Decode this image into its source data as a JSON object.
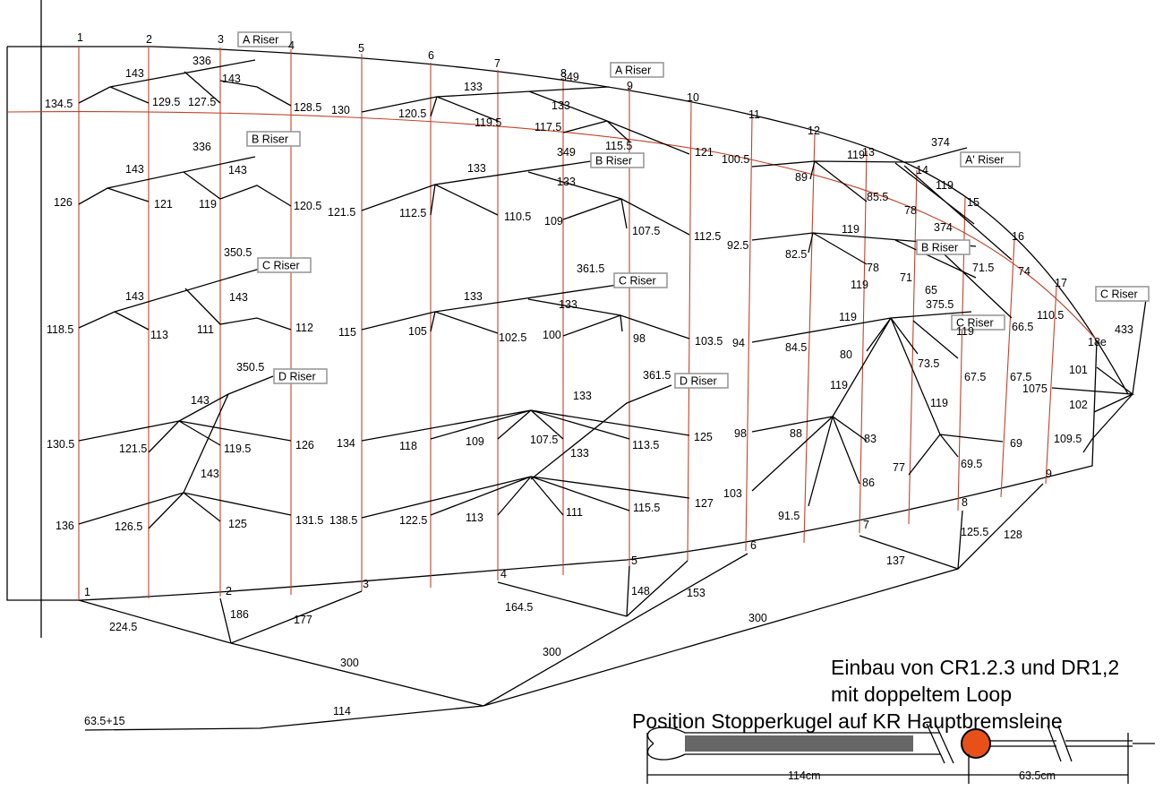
{
  "notes": {
    "line1": "Einbau von CR1.2.3 und DR1,2",
    "line2": "mit doppeltem Loop",
    "line3": "Position Stopperkugel auf KR Hauptbremsleine"
  },
  "colors": {
    "rib": "#c0432a",
    "line": "#000000",
    "stopper_ball": "#e8501a",
    "riser_box_border": "#999999"
  },
  "stopper": {
    "dim_left": "114cm",
    "dim_right": "63.5cm"
  },
  "riser_tags": [
    "A Riser",
    "A Riser",
    "B Riser",
    "B Riser",
    "C Riser",
    "C Riser",
    "D Riser",
    "D Riser",
    "A' Riser",
    "B Riser",
    "C Riser",
    "C Riser"
  ],
  "rib_numbers_top": [
    "1",
    "2",
    "3",
    "4",
    "5",
    "6",
    "7",
    "8",
    "9",
    "10",
    "11",
    "12",
    "13",
    "14",
    "15",
    "16",
    "17",
    "18e"
  ],
  "rib_numbers_bottom": [
    "1",
    "2",
    "3",
    "4",
    "5",
    "6",
    "7",
    "8",
    "9"
  ],
  "a_level": [
    "336",
    "143",
    "143",
    "134.5",
    "129.5",
    "127.5",
    "128.5",
    "349",
    "133",
    "133",
    "130",
    "120.5",
    "119.5",
    "117.5",
    "115.5",
    "121",
    "374",
    "119",
    "119",
    "100.5",
    "89",
    "85.5",
    "78",
    "374"
  ],
  "b_level": [
    "336",
    "143",
    "143",
    "126",
    "121",
    "119",
    "120.5",
    "349",
    "133",
    "133",
    "121.5",
    "112.5",
    "110.5",
    "109",
    "107.5",
    "112.5",
    "92.5",
    "82.5",
    "78",
    "119",
    "119",
    "71",
    "71.5",
    "74"
  ],
  "c_level": [
    "350.5",
    "143",
    "143",
    "118.5",
    "113",
    "111",
    "112",
    "361.5",
    "133",
    "133",
    "115",
    "105",
    "102.5",
    "100",
    "98",
    "103.5",
    "94",
    "84.5",
    "80",
    "119",
    "375.5",
    "65",
    "119",
    "73.5",
    "67.5",
    "67.5",
    "66.5",
    "110.5",
    "433",
    "101",
    "1075",
    "102",
    "109.5"
  ],
  "d_level": [
    "350.5",
    "143",
    "143",
    "130.5",
    "121.5",
    "119.5",
    "126",
    "136",
    "126.5",
    "125",
    "131.5",
    "361.5",
    "133",
    "133",
    "134",
    "118",
    "109",
    "107.5",
    "113.5",
    "125",
    "138.5",
    "122.5",
    "113",
    "111",
    "115.5",
    "127",
    "119",
    "98",
    "88",
    "83",
    "103",
    "91.5",
    "86",
    "119",
    "77",
    "69.5",
    "69"
  ],
  "brake_level": [
    "224.5",
    "186",
    "177",
    "300",
    "164.5",
    "148",
    "153",
    "300",
    "137",
    "125.5",
    "128",
    "300",
    "114",
    "63.5+15"
  ]
}
